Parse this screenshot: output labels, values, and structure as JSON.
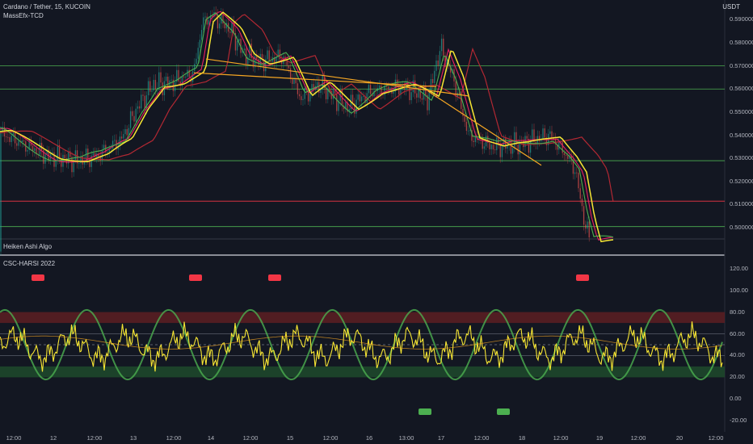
{
  "header": {
    "symbol_title": "Cardano / Tether, 15, KUCOIN",
    "indicator_1": "MassEfx-TCD",
    "currency": "USDT"
  },
  "panes": {
    "pane2_title": "Heiken Ashi Algo",
    "pane3_title": "CSC-HARSI 2022"
  },
  "chart_data": [
    {
      "type": "candlestick",
      "title": "Cardano / Tether, 15, KUCOIN",
      "y_axis_ticks": [
        "0.590000",
        "0.580000",
        "0.570000",
        "0.560000",
        "0.550000",
        "0.540000",
        "0.530000",
        "0.520000",
        "0.510000",
        "0.500000"
      ],
      "ylim": [
        0.4955,
        0.5985
      ],
      "x_axis_ticks": [
        "12:00",
        "12",
        "12:00",
        "13",
        "12:00",
        "14",
        "12:00",
        "15",
        "12:00",
        "16",
        "13:00",
        "17",
        "12:00",
        "18",
        "12:00",
        "19",
        "12:00",
        "20",
        "12:00"
      ],
      "horizontal_levels": [
        {
          "value": 0.57,
          "color": "#4caf50"
        },
        {
          "value": 0.56,
          "color": "#4caf50"
        },
        {
          "value": 0.529,
          "color": "#4caf50"
        },
        {
          "value": 0.5005,
          "color": "#4caf50"
        },
        {
          "value": 0.5115,
          "color": "#f23645"
        }
      ],
      "series": [
        {
          "name": "",
          "color": "#f7e633"
        },
        {
          "name": "",
          "color": "#e91e63"
        },
        {
          "name": "",
          "color": "#4caf50"
        },
        {
          "name": "",
          "color": "#b22833"
        },
        {
          "name": "",
          "color": "#f5a623"
        }
      ]
    },
    {
      "type": "line",
      "title": "CSC-HARSI 2022",
      "y_axis_ticks": [
        "120.00",
        "100.00",
        "80.00",
        "60.00",
        "40.00",
        "20.00",
        "0.00",
        "-20.00"
      ],
      "ylim": [
        -25,
        125
      ],
      "zones": [
        {
          "from": 70,
          "to": 80,
          "color": "#5d1e22"
        },
        {
          "from": 20,
          "to": 30,
          "color": "#1f4a2c"
        }
      ],
      "levels": [
        60,
        40,
        50
      ],
      "signals_sell": [
        "11 15:00",
        "13 18:00",
        "14 18:00",
        "18 18:00"
      ],
      "signals_buy": [
        "16 18:00",
        "17 17:00"
      ],
      "series": [
        {
          "name": "",
          "color": "#f7e633"
        },
        {
          "name": "",
          "color": "#4caf50"
        }
      ]
    }
  ]
}
